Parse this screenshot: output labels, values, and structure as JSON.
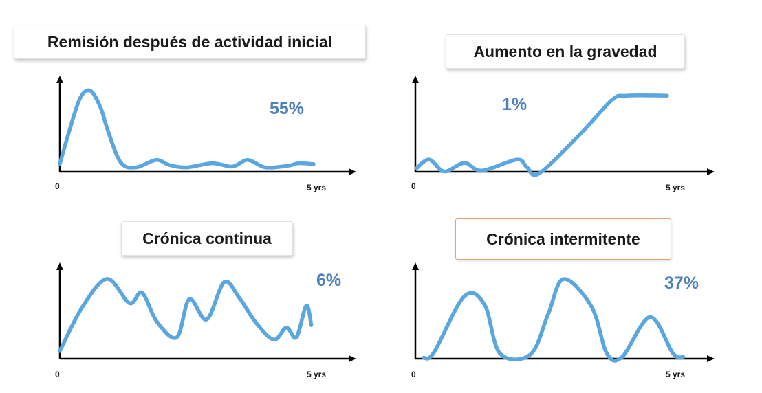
{
  "chart_data": [
    {
      "type": "line",
      "title": "Remisión después de actividad inicial",
      "annotation": "55%",
      "x_tick_labels": [
        "0",
        "5 yrs"
      ],
      "xlim": [
        0,
        5
      ],
      "ylim": [
        0,
        1
      ],
      "grid": false,
      "line_color": "#5aa7e0",
      "x": [
        0,
        0.18,
        0.4,
        0.6,
        0.8,
        0.95,
        1.2,
        1.5,
        1.9,
        2.15,
        2.5,
        3.0,
        3.4,
        3.7,
        4.05,
        4.5,
        4.7,
        5.0
      ],
      "values": [
        0.06,
        0.45,
        0.86,
        0.95,
        0.75,
        0.46,
        0.08,
        0.02,
        0.11,
        0.05,
        0.02,
        0.07,
        0.03,
        0.11,
        0.02,
        0.04,
        0.07,
        0.06
      ]
    },
    {
      "type": "line",
      "title": "Aumento en la gravedad",
      "annotation": "1%",
      "x_tick_labels": [
        "0",
        "5 yrs"
      ],
      "xlim": [
        0,
        5
      ],
      "ylim": [
        0,
        1
      ],
      "grid": false,
      "line_color": "#5aa7e0",
      "x": [
        0,
        0.25,
        0.55,
        0.95,
        1.3,
        2.0,
        2.2,
        2.45,
        3.3,
        3.9,
        4.2,
        5.0
      ],
      "values": [
        0.06,
        0.16,
        0.02,
        0.12,
        0.03,
        0.16,
        0.07,
        0.0,
        0.48,
        0.86,
        0.91,
        0.91
      ]
    },
    {
      "type": "line",
      "title": "Crónica continua",
      "annotation": "6%",
      "x_tick_labels": [
        "0",
        "5 yrs"
      ],
      "xlim": [
        0,
        5
      ],
      "ylim": [
        0,
        1
      ],
      "grid": false,
      "line_color": "#5aa7e0",
      "x": [
        0,
        0.45,
        0.95,
        1.4,
        1.65,
        1.95,
        2.35,
        2.6,
        2.95,
        3.3,
        3.6,
        3.95,
        4.3,
        4.55,
        4.75,
        4.95,
        5.05
      ],
      "values": [
        0.06,
        0.6,
        0.95,
        0.65,
        0.78,
        0.42,
        0.23,
        0.7,
        0.45,
        0.91,
        0.72,
        0.4,
        0.2,
        0.35,
        0.23,
        0.62,
        0.38
      ]
    },
    {
      "type": "line",
      "title": "Crónica intermitente",
      "annotation": "37%",
      "x_tick_labels": [
        "0",
        "5 yrs"
      ],
      "xlim": [
        0,
        5
      ],
      "ylim": [
        0,
        1
      ],
      "grid": false,
      "line_color": "#5aa7e0",
      "x": [
        0,
        0.2,
        0.8,
        1.2,
        1.5,
        2.1,
        2.45,
        2.75,
        3.3,
        3.6,
        3.9,
        4.45,
        4.9,
        5.1
      ],
      "values": [
        0.01,
        0.07,
        0.72,
        0.62,
        0.06,
        0.05,
        0.52,
        0.92,
        0.6,
        0.06,
        0.02,
        0.48,
        0.06,
        0.02
      ]
    }
  ]
}
